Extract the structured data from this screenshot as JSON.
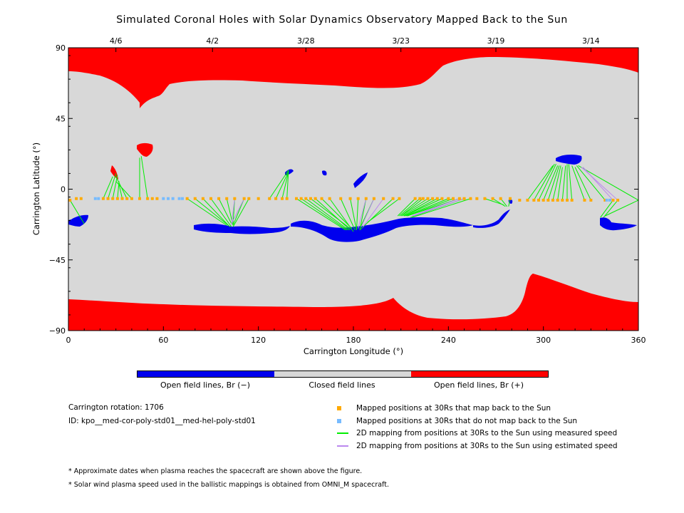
{
  "title": "Simulated Coronal Holes with Solar Dynamics Observatory Mapped Back to the Sun",
  "chart_data": {
    "type": "scatter",
    "xlabel": "Carrington Longitude (°)",
    "ylabel": "Carrington Latitude (°)",
    "xlim": [
      0,
      360
    ],
    "ylim": [
      -90,
      90
    ],
    "x_ticks": [
      0,
      60,
      120,
      180,
      240,
      300,
      360
    ],
    "y_ticks": [
      90,
      45,
      0,
      -45,
      -90
    ],
    "y_tick_labels": [
      "90",
      "45",
      "0",
      "−45",
      "−90"
    ],
    "top_axis": {
      "labels": [
        {
          "lon": 30,
          "text": "4/6"
        },
        {
          "lon": 91,
          "text": "4/2"
        },
        {
          "lon": 150,
          "text": "3/28"
        },
        {
          "lon": 210,
          "text": "3/23"
        },
        {
          "lon": 270,
          "text": "3/19"
        },
        {
          "lon": 330,
          "text": "3/14"
        }
      ]
    },
    "colors": {
      "negative": "#0000ee",
      "closed": "#d8d8d8",
      "positive": "#ff0000",
      "mapped": "#ffaa00",
      "unmapped": "#77bbff",
      "measured": "#00ee00",
      "estimated": "#bb88ee"
    },
    "series": [
      {
        "name": "Mapped positions at 30Rs that map back to the Sun",
        "kind": "points",
        "points": [
          [
            1,
            -7
          ],
          [
            5,
            -6
          ],
          [
            8,
            -6
          ],
          [
            22,
            -6
          ],
          [
            25,
            -6
          ],
          [
            28,
            -6
          ],
          [
            31,
            -6
          ],
          [
            34,
            -6
          ],
          [
            37,
            -6
          ],
          [
            40,
            -6
          ],
          [
            45,
            -6
          ],
          [
            50,
            -6
          ],
          [
            53,
            -6
          ],
          [
            56,
            -6
          ],
          [
            75,
            -6
          ],
          [
            80,
            -6
          ],
          [
            85,
            -6
          ],
          [
            90,
            -6
          ],
          [
            95,
            -6
          ],
          [
            100,
            -6
          ],
          [
            105,
            -6
          ],
          [
            111,
            -6
          ],
          [
            114,
            -6
          ],
          [
            120,
            -6
          ],
          [
            127,
            -6
          ],
          [
            131,
            -6
          ],
          [
            135,
            -6
          ],
          [
            138,
            -6
          ],
          [
            144,
            -6
          ],
          [
            147,
            -6
          ],
          [
            150,
            -6
          ],
          [
            153,
            -6
          ],
          [
            156,
            -6
          ],
          [
            160,
            -6
          ],
          [
            165,
            -6
          ],
          [
            172,
            -6
          ],
          [
            178,
            -6
          ],
          [
            183,
            -6
          ],
          [
            188,
            -6
          ],
          [
            193,
            -6
          ],
          [
            199,
            -6
          ],
          [
            205,
            -6
          ],
          [
            209,
            -6
          ],
          [
            219,
            -6
          ],
          [
            222,
            -6
          ],
          [
            224,
            -6
          ],
          [
            227,
            -6
          ],
          [
            230,
            -6
          ],
          [
            233,
            -6
          ],
          [
            236,
            -6
          ],
          [
            240,
            -6
          ],
          [
            243,
            -6
          ],
          [
            247,
            -6
          ],
          [
            250,
            -6
          ],
          [
            254,
            -6
          ],
          [
            258,
            -6
          ],
          [
            263,
            -6
          ],
          [
            268,
            -6
          ],
          [
            273,
            -6
          ],
          [
            279,
            -6
          ],
          [
            285,
            -7
          ],
          [
            290,
            -7
          ],
          [
            294,
            -7
          ],
          [
            297,
            -7
          ],
          [
            300,
            -7
          ],
          [
            303,
            -7
          ],
          [
            306,
            -7
          ],
          [
            309,
            -7
          ],
          [
            312,
            -7
          ],
          [
            315,
            -7
          ],
          [
            318,
            -7
          ],
          [
            326,
            -7
          ],
          [
            330,
            -7
          ],
          [
            339,
            -7
          ],
          [
            344,
            -7
          ],
          [
            347,
            -7
          ]
        ]
      },
      {
        "name": "Mapped positions at 30Rs that do not map back to the Sun",
        "kind": "points",
        "points": [
          [
            17,
            -6
          ],
          [
            19,
            -6
          ],
          [
            60,
            -6
          ],
          [
            63,
            -6
          ],
          [
            66,
            -6
          ],
          [
            70,
            -6
          ],
          [
            72,
            -6
          ],
          [
            340,
            -7
          ],
          [
            342,
            -7
          ]
        ]
      },
      {
        "name": "2D mapping from positions at 30Rs to the Sun using measured speed",
        "kind": "segments",
        "segments": [
          [
            1,
            -7,
            10,
            -22
          ],
          [
            22,
            -6,
            28,
            8
          ],
          [
            25,
            -6,
            30,
            10
          ],
          [
            28,
            -6,
            31,
            9
          ],
          [
            31,
            -6,
            32,
            5
          ],
          [
            34,
            -6,
            32,
            3
          ],
          [
            37,
            -6,
            30,
            8
          ],
          [
            40,
            -6,
            30,
            5
          ],
          [
            45,
            -6,
            45,
            20
          ],
          [
            50,
            -6,
            46,
            21
          ],
          [
            75,
            -6,
            100,
            -23
          ],
          [
            80,
            -6,
            101,
            -23
          ],
          [
            85,
            -6,
            102,
            -24
          ],
          [
            90,
            -6,
            103,
            -24
          ],
          [
            95,
            -6,
            103,
            -22
          ],
          [
            100,
            -6,
            104,
            -23
          ],
          [
            105,
            -6,
            104,
            -22
          ],
          [
            111,
            -6,
            104,
            -23
          ],
          [
            114,
            -6,
            104,
            -24
          ],
          [
            127,
            -6,
            139,
            12
          ],
          [
            131,
            -6,
            139,
            11
          ],
          [
            135,
            -6,
            139,
            11
          ],
          [
            138,
            -6,
            139,
            12
          ],
          [
            144,
            -6,
            175,
            -26
          ],
          [
            147,
            -6,
            176,
            -26
          ],
          [
            150,
            -6,
            177,
            -26
          ],
          [
            153,
            -6,
            178,
            -25
          ],
          [
            156,
            -6,
            178,
            -26
          ],
          [
            160,
            -6,
            179,
            -25
          ],
          [
            165,
            -6,
            180,
            -27
          ],
          [
            172,
            -6,
            181,
            -26
          ],
          [
            178,
            -6,
            182,
            -26
          ],
          [
            183,
            -6,
            182,
            -26
          ],
          [
            188,
            -6,
            184,
            -26
          ],
          [
            193,
            -6,
            184,
            -25
          ],
          [
            205,
            -6,
            184,
            -26
          ],
          [
            209,
            -6,
            189,
            -21
          ],
          [
            219,
            -6,
            208,
            -17
          ],
          [
            222,
            -6,
            209,
            -17
          ],
          [
            224,
            -6,
            210,
            -17
          ],
          [
            227,
            -6,
            210,
            -17
          ],
          [
            230,
            -6,
            211,
            -17
          ],
          [
            233,
            -6,
            212,
            -17
          ],
          [
            236,
            -6,
            212,
            -17
          ],
          [
            240,
            -6,
            213,
            -17
          ],
          [
            243,
            -6,
            214,
            -17
          ],
          [
            247,
            -6,
            214,
            -17
          ],
          [
            250,
            -6,
            216,
            -18
          ],
          [
            254,
            -6,
            217,
            -18
          ],
          [
            263,
            -6,
            275,
            -10
          ],
          [
            268,
            -6,
            276,
            -11
          ],
          [
            273,
            -6,
            277,
            -11
          ],
          [
            279,
            -6,
            278,
            -11
          ],
          [
            290,
            -7,
            306,
            15
          ],
          [
            294,
            -7,
            307,
            16
          ],
          [
            297,
            -7,
            308,
            16
          ],
          [
            300,
            -7,
            309,
            15
          ],
          [
            303,
            -7,
            310,
            15
          ],
          [
            306,
            -7,
            311,
            15
          ],
          [
            309,
            -7,
            312,
            14
          ],
          [
            312,
            -7,
            314,
            15
          ],
          [
            315,
            -7,
            315,
            16
          ],
          [
            318,
            -7,
            316,
            16
          ],
          [
            326,
            -7,
            318,
            15
          ],
          [
            330,
            -7,
            320,
            14
          ],
          [
            339,
            -7,
            321,
            15
          ],
          [
            360,
            -7,
            322,
            15
          ],
          [
            344,
            -7,
            336,
            -18
          ],
          [
            347,
            -7,
            338,
            -18
          ],
          [
            360,
            -7,
            339,
            -17
          ]
        ]
      },
      {
        "name": "2D mapping from positions at 30Rs to the Sun using estimated speed",
        "kind": "segments",
        "segments": [
          [
            105,
            -6,
            103,
            -23
          ],
          [
            111,
            -6,
            103,
            -22
          ],
          [
            188,
            -6,
            183,
            -25
          ],
          [
            193,
            -6,
            185,
            -24
          ],
          [
            199,
            -6,
            186,
            -24
          ],
          [
            247,
            -6,
            217,
            -17
          ],
          [
            250,
            -6,
            218,
            -17
          ],
          [
            344,
            -7,
            325,
            14
          ],
          [
            347,
            -7,
            324,
            14
          ]
        ]
      }
    ],
    "colorbar": {
      "labels": [
        "Open field lines, Br (−)",
        "Closed field lines",
        "Open field lines, Br (+)"
      ]
    }
  },
  "info": {
    "rotation": "Carrington rotation: 1706",
    "id": "ID: kpo__med-cor-poly-std01__med-hel-poly-std01"
  },
  "notes": [
    "* Approximate dates when plasma reaches the spacecraft are shown above the figure.",
    "* Solar wind plasma speed used in the ballistic mappings is obtained from OMNI_M spacecraft."
  ]
}
